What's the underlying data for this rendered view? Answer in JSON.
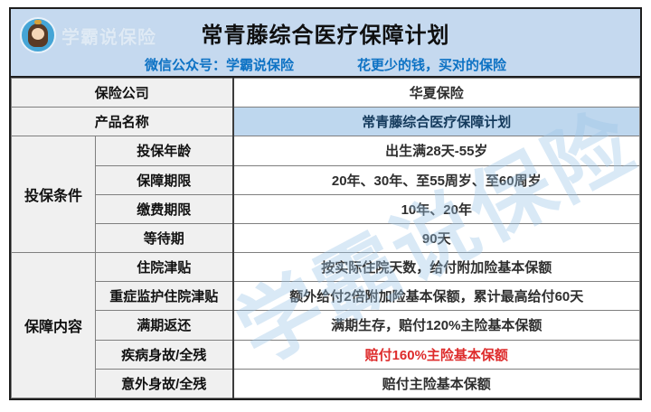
{
  "header": {
    "logo_text": "学霸说保险",
    "title": "常青藤综合医疗保障计划",
    "subtitle_left": "微信公众号：学霸说保险",
    "subtitle_right": "花更少的钱，买对的保险"
  },
  "watermark": "学霸说保险",
  "colors": {
    "header_bg": "#c5d9ef",
    "highlight_cell_bg": "#bed7ee",
    "label_cell_bg": "#f0f0f0",
    "subtitle_blue": "#0d72c4",
    "alert_red": "#de2b2b",
    "border_dark": "#1d1d1d",
    "border_gray": "#7f7f7f"
  },
  "table": {
    "simple_rows": [
      {
        "label": "保险公司",
        "value": "华夏保险"
      },
      {
        "label": "产品名称",
        "value": "常青藤综合医疗保障计划"
      }
    ],
    "groups": [
      {
        "name": "投保条件",
        "rows": [
          {
            "label": "投保年龄",
            "value": "出生满28天-55岁"
          },
          {
            "label": "保障期限",
            "value": "20年、30年、至55周岁、至60周岁"
          },
          {
            "label": "缴费期限",
            "value": "10年、20年"
          },
          {
            "label": "等待期",
            "value": "90天"
          }
        ]
      },
      {
        "name": "保障内容",
        "rows": [
          {
            "label": "住院津贴",
            "value": "按实际住院天数，给付附加险基本保额"
          },
          {
            "label": "重症监护住院津贴",
            "value": "额外给付2倍附加险基本保额，累计最高给付60天"
          },
          {
            "label": "满期返还",
            "value": "满期生存，赔付120%主险基本保额"
          },
          {
            "label": "疾病身故/全残",
            "value": "赔付160%主险基本保额",
            "highlight": "red"
          },
          {
            "label": "意外身故/全残",
            "value": "赔付主险基本保额"
          }
        ]
      }
    ]
  }
}
